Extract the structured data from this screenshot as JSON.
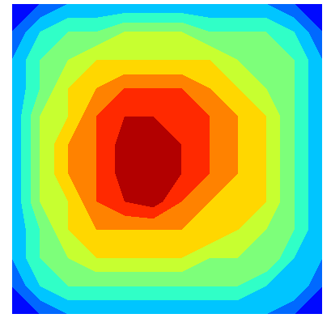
{
  "chart_data": {
    "type": "contour",
    "cells": [
      [
        1,
        2,
        3,
        3,
        3,
        3,
        3,
        3,
        3,
        3,
        2,
        1
      ],
      [
        2,
        4,
        5,
        5,
        6,
        6,
        6,
        5,
        5,
        5,
        4,
        2
      ],
      [
        3,
        5,
        6,
        7,
        7,
        7,
        7,
        7,
        6,
        6,
        5,
        3
      ],
      [
        3,
        5,
        7,
        8,
        9,
        9,
        9,
        8,
        7,
        6,
        5,
        3
      ],
      [
        3,
        6,
        7,
        9,
        10,
        10,
        10,
        9,
        8,
        7,
        5,
        3
      ],
      [
        3,
        6,
        8,
        9,
        10.5,
        10.5,
        10,
        9,
        8,
        7,
        5,
        3
      ],
      [
        3,
        6,
        8,
        9,
        10.5,
        10.5,
        10,
        9,
        8,
        7,
        5,
        3
      ],
      [
        3,
        6,
        7,
        9,
        10,
        10.5,
        9,
        8,
        8,
        7,
        5,
        3
      ],
      [
        3,
        5,
        7,
        8,
        8,
        8,
        8,
        8,
        7,
        6,
        5,
        3
      ],
      [
        3,
        5,
        6,
        7,
        7,
        7,
        7,
        6,
        6,
        6,
        4,
        3
      ],
      [
        2,
        4,
        5,
        5,
        5,
        5,
        5,
        5,
        5,
        4,
        4,
        2
      ],
      [
        1,
        2,
        3,
        3,
        3,
        3,
        3,
        3,
        3,
        3,
        2,
        1
      ]
    ],
    "levels": [
      0,
      1,
      2,
      3,
      4,
      5,
      6,
      7,
      8,
      9,
      10,
      11
    ],
    "tick_labels": false
  }
}
